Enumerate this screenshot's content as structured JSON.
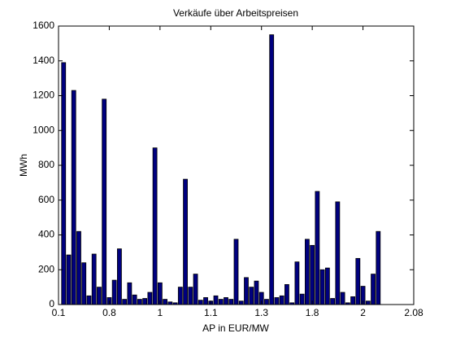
{
  "chart_data": {
    "type": "bar",
    "title": "Verkäufe über Arbeitspreisen",
    "xlabel": "AP in EUR/MW",
    "ylabel": "MWh",
    "x": [
      1,
      2,
      3,
      4,
      5,
      6,
      7,
      8,
      9,
      10,
      11,
      12,
      13,
      14,
      15,
      16,
      17,
      18,
      19,
      20,
      21,
      22,
      23,
      24,
      25,
      26,
      27,
      28,
      29,
      30,
      31,
      32,
      33,
      34,
      35,
      36,
      37,
      38,
      39,
      40,
      41,
      42,
      43,
      44,
      45,
      46,
      47,
      48,
      49,
      50,
      51,
      52,
      53,
      54,
      55,
      56,
      57,
      58,
      59,
      60,
      61,
      62,
      63
    ],
    "values": [
      1390,
      285,
      1230,
      420,
      240,
      50,
      290,
      100,
      1180,
      40,
      140,
      320,
      30,
      125,
      55,
      30,
      35,
      70,
      900,
      125,
      30,
      15,
      10,
      100,
      720,
      100,
      175,
      25,
      40,
      20,
      50,
      30,
      40,
      30,
      375,
      20,
      155,
      100,
      135,
      70,
      30,
      1550,
      40,
      50,
      115,
      10,
      245,
      60,
      375,
      340,
      650,
      200,
      210,
      35,
      590,
      70,
      10,
      45,
      265,
      105,
      20,
      175,
      420
    ],
    "color": "#00007f",
    "xlim": [
      0,
      70
    ],
    "xticks": [
      {
        "value": 0,
        "label": "0.1"
      },
      {
        "value": 10,
        "label": "0.8"
      },
      {
        "value": 20,
        "label": "1"
      },
      {
        "value": 30,
        "label": "1.1"
      },
      {
        "value": 40,
        "label": "1.3"
      },
      {
        "value": 50,
        "label": "1.8"
      },
      {
        "value": 60,
        "label": "2"
      },
      {
        "value": 70,
        "label": "2.08"
      }
    ],
    "ylim": [
      0,
      1600
    ],
    "yticks": [
      0,
      200,
      400,
      600,
      800,
      1000,
      1200,
      1400,
      1600
    ]
  }
}
